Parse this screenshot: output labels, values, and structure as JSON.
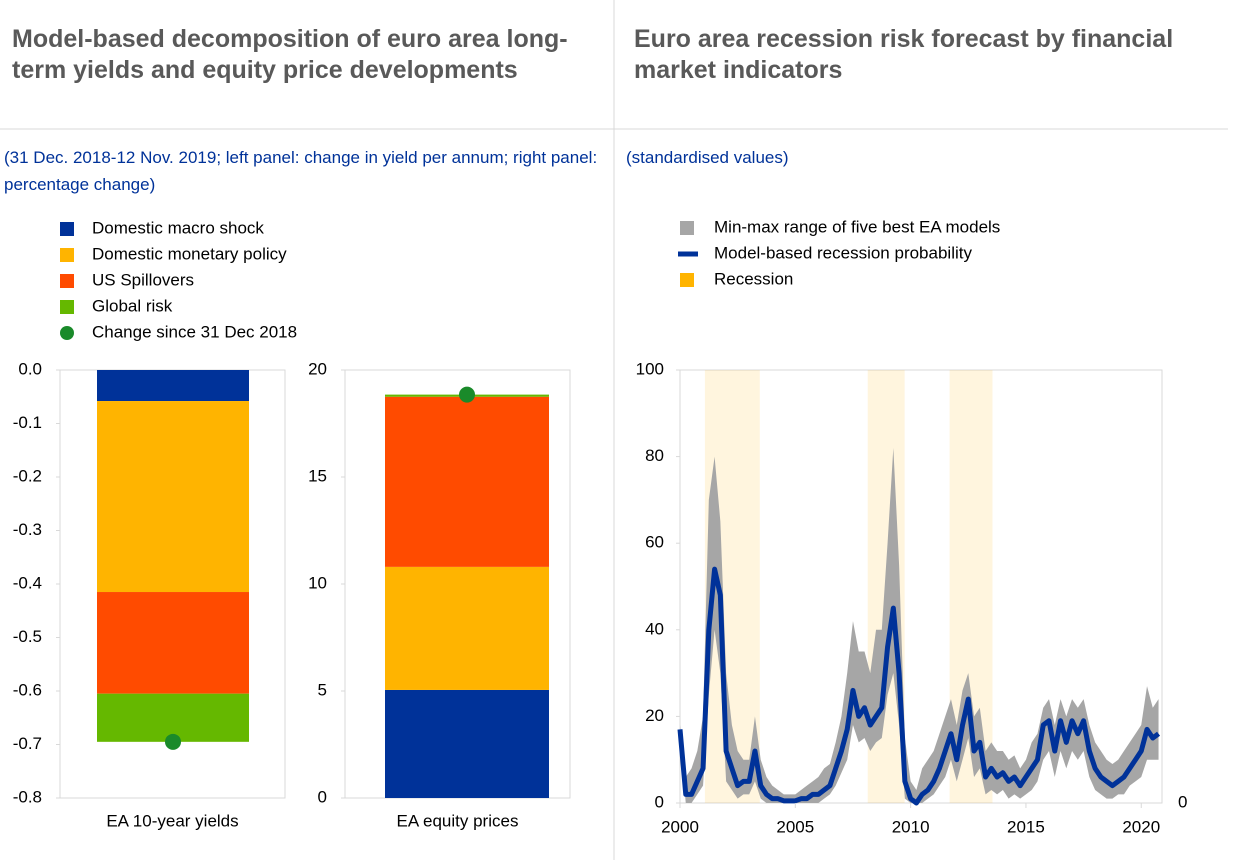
{
  "chart_data": [
    {
      "type": "stacked_bar",
      "title": "Model-based decomposition of euro area long-term yields and equity price developments",
      "subtitle": "(31 Dec. 2018-12 Nov. 2019; left panel: change in yield per annum; right panel: percentage change)",
      "categories": [
        "EA 10-year yields",
        "EA equity prices"
      ],
      "panels": [
        {
          "ylim": [
            -0.8,
            0
          ],
          "yticks": [
            {
              "value": 0,
              "label": "0.0"
            },
            -0.1,
            -0.2,
            -0.3,
            -0.4,
            -0.5,
            -0.6,
            -0.7,
            -0.8
          ]
        },
        {
          "ylim": [
            0,
            20
          ],
          "yticks": [
            0,
            5,
            10,
            15,
            20
          ]
        }
      ],
      "series": [
        {
          "name": "Domestic macro shock",
          "color": "#003299",
          "values": [
            -0.058,
            5.05
          ]
        },
        {
          "name": "Domestic monetary policy",
          "color": "#ffb400",
          "values": [
            -0.357,
            5.75
          ]
        },
        {
          "name": "US Spillovers",
          "color": "#ff4b00",
          "values": [
            -0.19,
            7.95
          ]
        },
        {
          "name": "Global risk",
          "color": "#65b800",
          "values": [
            -0.09,
            0.1
          ]
        }
      ],
      "points": {
        "name": "Change since 31 Dec 2018",
        "color": "#1a8a2a",
        "values": [
          -0.695,
          18.85
        ]
      }
    },
    {
      "type": "line",
      "title": "Euro area recession risk forecast by financial market indicators",
      "subtitle": "(standardised values)",
      "x": [
        2000,
        2000.25,
        2000.5,
        2000.75,
        2001,
        2001.25,
        2001.5,
        2001.75,
        2002,
        2002.25,
        2002.5,
        2002.75,
        2003,
        2003.25,
        2003.5,
        2003.75,
        2004,
        2004.25,
        2004.5,
        2004.75,
        2005,
        2005.25,
        2005.5,
        2005.75,
        2006,
        2006.25,
        2006.5,
        2006.75,
        2007,
        2007.25,
        2007.5,
        2007.75,
        2008,
        2008.25,
        2008.5,
        2008.75,
        2009,
        2009.25,
        2009.5,
        2009.75,
        2010,
        2010.25,
        2010.5,
        2010.75,
        2011,
        2011.25,
        2011.5,
        2011.75,
        2012,
        2012.25,
        2012.5,
        2012.75,
        2013,
        2013.25,
        2013.5,
        2013.75,
        2014,
        2014.25,
        2014.5,
        2014.75,
        2015,
        2015.25,
        2015.5,
        2015.75,
        2016,
        2016.25,
        2016.5,
        2016.75,
        2017,
        2017.25,
        2017.5,
        2017.75,
        2018,
        2018.25,
        2018.5,
        2018.75,
        2019,
        2019.25,
        2019.5,
        2019.75,
        2020,
        2020.25,
        2020.5,
        2020.75
      ],
      "xlim": [
        2000,
        2020.9
      ],
      "xticks": [
        2000,
        2005,
        2010,
        2015,
        2020
      ],
      "ylim": [
        0,
        100
      ],
      "yticks": [
        0,
        20,
        40,
        60,
        80,
        100
      ],
      "y2lim": [
        0,
        100
      ],
      "y2ticks": [
        0
      ],
      "series": [
        {
          "name": "Min-max range of five best EA models",
          "color": "#a6a6a6",
          "lower": [
            15,
            0,
            0,
            2,
            4,
            25,
            40,
            30,
            5,
            3,
            1,
            2,
            2,
            5,
            1,
            0,
            0,
            0,
            0,
            0,
            0,
            0,
            0,
            0,
            0,
            1,
            2,
            4,
            7,
            10,
            18,
            14,
            15,
            12,
            14,
            15,
            25,
            30,
            18,
            1,
            0,
            0,
            0,
            1,
            2,
            4,
            6,
            10,
            5,
            10,
            15,
            6,
            8,
            2,
            3,
            2,
            3,
            1,
            2,
            1,
            2,
            3,
            5,
            10,
            12,
            6,
            12,
            8,
            12,
            10,
            12,
            6,
            3,
            2,
            1,
            1,
            2,
            2,
            4,
            5,
            6,
            10,
            10,
            10
          ],
          "upper": [
            18,
            6,
            8,
            12,
            20,
            70,
            80,
            65,
            30,
            18,
            12,
            10,
            10,
            20,
            10,
            6,
            4,
            3,
            2,
            2,
            2,
            3,
            4,
            5,
            6,
            8,
            9,
            14,
            20,
            30,
            42,
            35,
            35,
            30,
            40,
            40,
            60,
            82,
            55,
            15,
            5,
            3,
            8,
            10,
            12,
            16,
            20,
            24,
            18,
            26,
            30,
            20,
            22,
            12,
            14,
            12,
            12,
            10,
            11,
            8,
            10,
            14,
            16,
            22,
            24,
            18,
            24,
            20,
            24,
            22,
            24,
            18,
            14,
            12,
            10,
            9,
            10,
            12,
            14,
            16,
            18,
            27,
            22,
            24
          ]
        },
        {
          "name": "Model-based recession probability",
          "color": "#003299",
          "values": [
            17,
            2,
            2,
            5,
            8,
            40,
            54,
            48,
            12,
            8,
            4,
            5,
            5,
            12,
            4,
            2,
            1,
            1,
            0.5,
            0.5,
            0.5,
            1,
            1,
            2,
            2,
            3,
            4,
            8,
            12,
            17,
            26,
            20,
            22,
            18,
            20,
            22,
            36,
            45,
            30,
            5,
            1,
            0,
            2,
            3,
            5,
            8,
            12,
            16,
            10,
            18,
            24,
            12,
            14,
            6,
            8,
            6,
            7,
            5,
            6,
            4,
            6,
            8,
            10,
            18,
            19,
            12,
            19,
            14,
            19,
            16,
            19,
            12,
            8,
            6,
            5,
            4,
            5,
            6,
            8,
            10,
            12,
            17,
            15,
            16
          ]
        }
      ],
      "recession": {
        "name": "Recession",
        "color": "#ffb400",
        "periods": [
          [
            2001.08,
            2003.46
          ],
          [
            2008.14,
            2009.74
          ],
          [
            2011.69,
            2013.55
          ]
        ]
      }
    }
  ]
}
